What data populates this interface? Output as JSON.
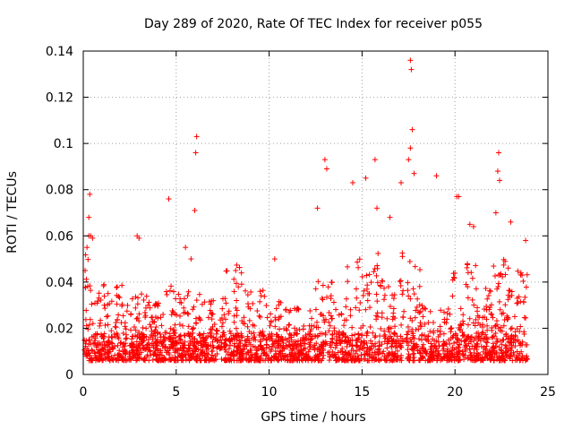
{
  "chart_data": {
    "type": "scatter",
    "title": "Day 289 of 2020, Rate Of TEC Index for receiver p055",
    "xlabel": "GPS time / hours",
    "ylabel": "ROTI / TECUs",
    "xlim": [
      0,
      25
    ],
    "ylim": [
      0,
      0.14
    ],
    "x_ticks": [
      "0",
      "5",
      "10",
      "15",
      "20",
      "25"
    ],
    "y_ticks": [
      "0",
      "0.02",
      "0.04",
      "0.06",
      "0.08",
      "0.1",
      "0.12",
      "0.14"
    ],
    "grid": true,
    "marker": "plus",
    "color": "#ff0000",
    "series": [
      {
        "name": "ROTI",
        "x": [
          0.1,
          0.2,
          0.3,
          0.4,
          0.5,
          0.3,
          0.35,
          2.9,
          3.0,
          4.6,
          5.5,
          5.8,
          6.0,
          6.05,
          6.1,
          8.2,
          10.3,
          12.6,
          13.0,
          13.1,
          14.5,
          15.2,
          15.7,
          15.8,
          16.5,
          17.1,
          17.5,
          17.6,
          17.65,
          17.7,
          17.6,
          17.8,
          19.0,
          20.1,
          20.2,
          20.8,
          21.0,
          22.2,
          22.3,
          22.35,
          22.4,
          23.0,
          23.8
        ],
        "y": [
          0.045,
          0.055,
          0.06,
          0.06,
          0.059,
          0.068,
          0.078,
          0.06,
          0.059,
          0.076,
          0.055,
          0.05,
          0.071,
          0.096,
          0.103,
          0.045,
          0.05,
          0.072,
          0.093,
          0.089,
          0.083,
          0.085,
          0.093,
          0.072,
          0.068,
          0.083,
          0.093,
          0.136,
          0.132,
          0.106,
          0.098,
          0.087,
          0.086,
          0.077,
          0.077,
          0.065,
          0.064,
          0.07,
          0.088,
          0.096,
          0.084,
          0.066,
          0.058
        ]
      }
    ]
  }
}
